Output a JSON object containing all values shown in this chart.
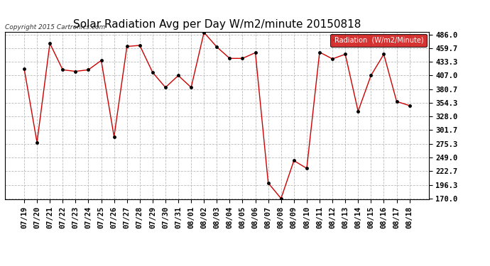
{
  "title": "Solar Radiation Avg per Day W/m2/minute 20150818",
  "copyright_text": "Copyright 2015 Cartronics.com",
  "legend_label": "Radiation  (W/m2/Minute)",
  "background_color": "#ffffff",
  "plot_bg_color": "#ffffff",
  "grid_color": "#bbbbbb",
  "line_color": "#cc0000",
  "marker_color": "#000000",
  "x_labels": [
    "07/19",
    "07/20",
    "07/21",
    "07/22",
    "07/23",
    "07/24",
    "07/25",
    "07/26",
    "07/27",
    "07/28",
    "07/29",
    "07/30",
    "07/31",
    "08/01",
    "08/02",
    "08/03",
    "08/04",
    "08/05",
    "08/06",
    "08/07",
    "08/08",
    "08/09",
    "08/10",
    "08/11",
    "08/12",
    "08/13",
    "08/14",
    "08/15",
    "08/16",
    "08/17",
    "08/18"
  ],
  "y_values": [
    420.0,
    278.0,
    469.0,
    418.0,
    415.0,
    418.0,
    436.0,
    289.0,
    463.0,
    465.0,
    413.0,
    384.0,
    407.0,
    384.0,
    490.0,
    462.0,
    440.0,
    440.0,
    451.0,
    200.0,
    170.0,
    243.0,
    228.0,
    452.0,
    439.0,
    448.0,
    338.0,
    407.0,
    448.0,
    357.0,
    349.0
  ],
  "ylim_min": 170.0,
  "ylim_max": 486.0,
  "yticks": [
    170.0,
    196.3,
    222.7,
    249.0,
    275.3,
    301.7,
    328.0,
    354.3,
    380.7,
    407.0,
    433.3,
    459.7,
    486.0
  ],
  "title_fontsize": 11,
  "tick_fontsize": 7.5,
  "legend_bg": "#cc0000",
  "legend_text_color": "#ffffff"
}
